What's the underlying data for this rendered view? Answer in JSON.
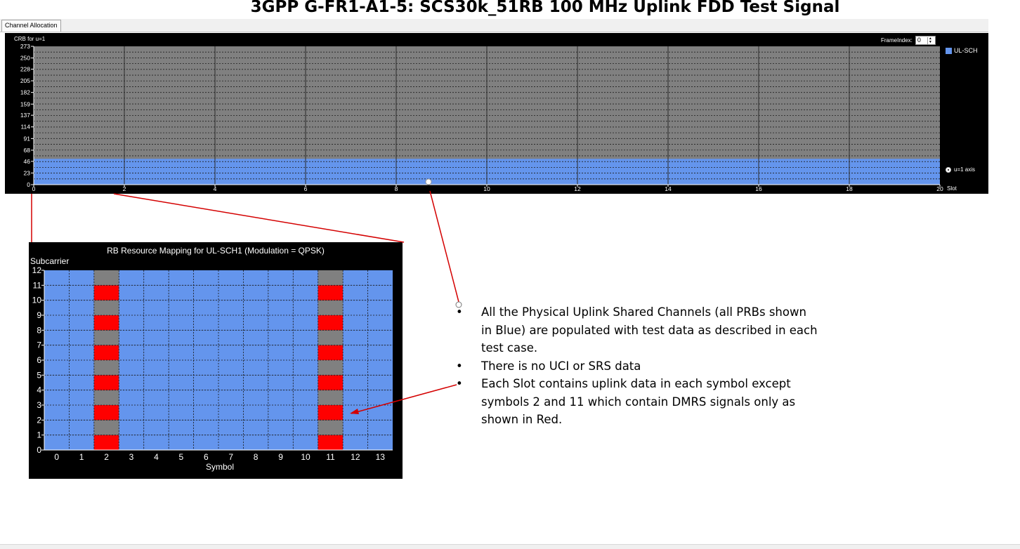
{
  "title": "3GPP G-FR1-A1-5: SCS30k_51RB 100 MHz Uplink FDD Test Signal",
  "tab": {
    "label": "Channel Allocation"
  },
  "crb_chart": {
    "y_axis_title": "CRB for u=1",
    "frame_index_label": "FrameIndex:",
    "frame_index_value": "0",
    "legend_label": "UL-SCH",
    "radio_label": "u=1 axis",
    "x_axis_unit": "Slot",
    "y_ticks": [
      "0",
      "23",
      "46",
      "68",
      "91",
      "114",
      "137",
      "159",
      "182",
      "205",
      "228",
      "250",
      "273"
    ],
    "x_ticks": [
      "0",
      "2",
      "4",
      "6",
      "8",
      "10",
      "12",
      "14",
      "16",
      "18",
      "20"
    ],
    "colors": {
      "allocated": "#6495ed",
      "unallocated": "#808080",
      "background": "#000000"
    }
  },
  "rb_map": {
    "title": "RB Resource Mapping for UL-SCH1 (Modulation = QPSK)",
    "y_label": "Subcarrier",
    "x_label": "Symbol",
    "y_ticks": [
      "0",
      "1",
      "2",
      "3",
      "4",
      "5",
      "6",
      "7",
      "8",
      "9",
      "10",
      "11",
      "12"
    ],
    "x_ticks": [
      "0",
      "1",
      "2",
      "3",
      "4",
      "5",
      "6",
      "7",
      "8",
      "9",
      "10",
      "11",
      "12",
      "13"
    ],
    "dmrs_symbols": [
      2,
      11
    ],
    "colors": {
      "data": "#6495ed",
      "dmrs": "#ff0000",
      "empty": "#808080"
    }
  },
  "chart_data": [
    {
      "type": "area",
      "title": "",
      "ylabel": "CRB for u=1",
      "xlabel": "Slot",
      "xlim": [
        0,
        20
      ],
      "ylim": [
        0,
        273
      ],
      "series": [
        {
          "name": "UL-SCH",
          "x": [
            0,
            20
          ],
          "crb_start": 0,
          "crb_end": 51
        }
      ]
    },
    {
      "type": "heatmap",
      "title": "RB Resource Mapping for UL-SCH1 (Modulation = QPSK)",
      "xlabel": "Symbol",
      "ylabel": "Subcarrier",
      "x": [
        0,
        1,
        2,
        3,
        4,
        5,
        6,
        7,
        8,
        9,
        10,
        11,
        12,
        13
      ],
      "y": [
        0,
        1,
        2,
        3,
        4,
        5,
        6,
        7,
        8,
        9,
        10,
        11
      ],
      "cells": "symbols 0-1, 3-10, 12-13: data (blue) on all subcarriers; symbols 2 and 11: DMRS (red) on even subcarriers 0,2,4,6,8,10 and empty (gray) on odd subcarriers"
    }
  ],
  "notes": [
    "All the Physical Uplink Shared Channels (all PRBs shown in Blue) are populated with test data as described in each test case.",
    "There is no UCI or SRS data",
    "Each Slot contains uplink data in each symbol except symbols 2 and 11 which contain DMRS signals only as shown in Red."
  ]
}
